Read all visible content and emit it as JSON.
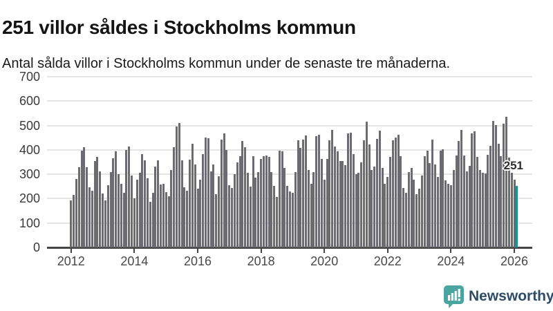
{
  "header": {
    "title": "251 villor såldes i Stockholms kommun",
    "subtitle": "Antal sålda villor i Stockholms kommun under de senaste tre månaderna."
  },
  "chart_data": {
    "type": "bar",
    "title": "251 villor såldes i Stockholms kommun",
    "subtitle": "Antal sålda villor i Stockholms kommun under de senaste tre månaderna.",
    "frequency": "monthly",
    "period": {
      "start": "2012-01",
      "end": "2026-02"
    },
    "ylim": [
      0,
      700
    ],
    "yticks": [
      0,
      100,
      200,
      300,
      400,
      500,
      600,
      700
    ],
    "xticks": [
      "2012",
      "2014",
      "2016",
      "2018",
      "2020",
      "2022",
      "2024",
      "2026"
    ],
    "grid": true,
    "values": [
      193,
      215,
      281,
      330,
      396,
      411,
      330,
      246,
      231,
      354,
      372,
      311,
      220,
      193,
      256,
      310,
      365,
      393,
      299,
      262,
      224,
      400,
      414,
      295,
      201,
      278,
      307,
      382,
      358,
      282,
      186,
      225,
      332,
      356,
      257,
      262,
      228,
      211,
      318,
      410,
      497,
      511,
      357,
      247,
      233,
      360,
      425,
      340,
      242,
      277,
      382,
      452,
      448,
      313,
      339,
      217,
      292,
      442,
      467,
      400,
      256,
      245,
      300,
      350,
      375,
      437,
      412,
      305,
      250,
      374,
      285,
      310,
      362,
      374,
      377,
      370,
      310,
      252,
      207,
      398,
      393,
      327,
      252,
      230,
      224,
      308,
      438,
      407,
      443,
      459,
      318,
      261,
      308,
      456,
      463,
      362,
      278,
      362,
      440,
      483,
      414,
      393,
      355,
      353,
      337,
      467,
      471,
      384,
      300,
      305,
      350,
      440,
      516,
      422,
      318,
      332,
      445,
      480,
      327,
      261,
      290,
      370,
      440,
      452,
      461,
      374,
      245,
      224,
      308,
      325,
      278,
      217,
      242,
      294,
      374,
      396,
      346,
      443,
      341,
      288,
      398,
      403,
      275,
      261,
      255,
      318,
      376,
      436,
      483,
      376,
      313,
      334,
      469,
      476,
      372,
      318,
      307,
      302,
      380,
      418,
      518,
      503,
      424,
      373,
      508,
      535,
      368,
      305,
      279,
      251
    ],
    "highlight": {
      "index": 169,
      "value": 251,
      "label": "251"
    },
    "bar_color": "#6b6b71",
    "highlight_color": "#18948e"
  },
  "footer": {
    "brand": "Newsworthy"
  },
  "colors": {
    "bar": "#6b6b71",
    "highlight": "#18948e",
    "grid": "#e4e4e4",
    "axis": "#454545",
    "logo_teal": "#4aa5a0",
    "logo_text": "#2e4c67"
  }
}
